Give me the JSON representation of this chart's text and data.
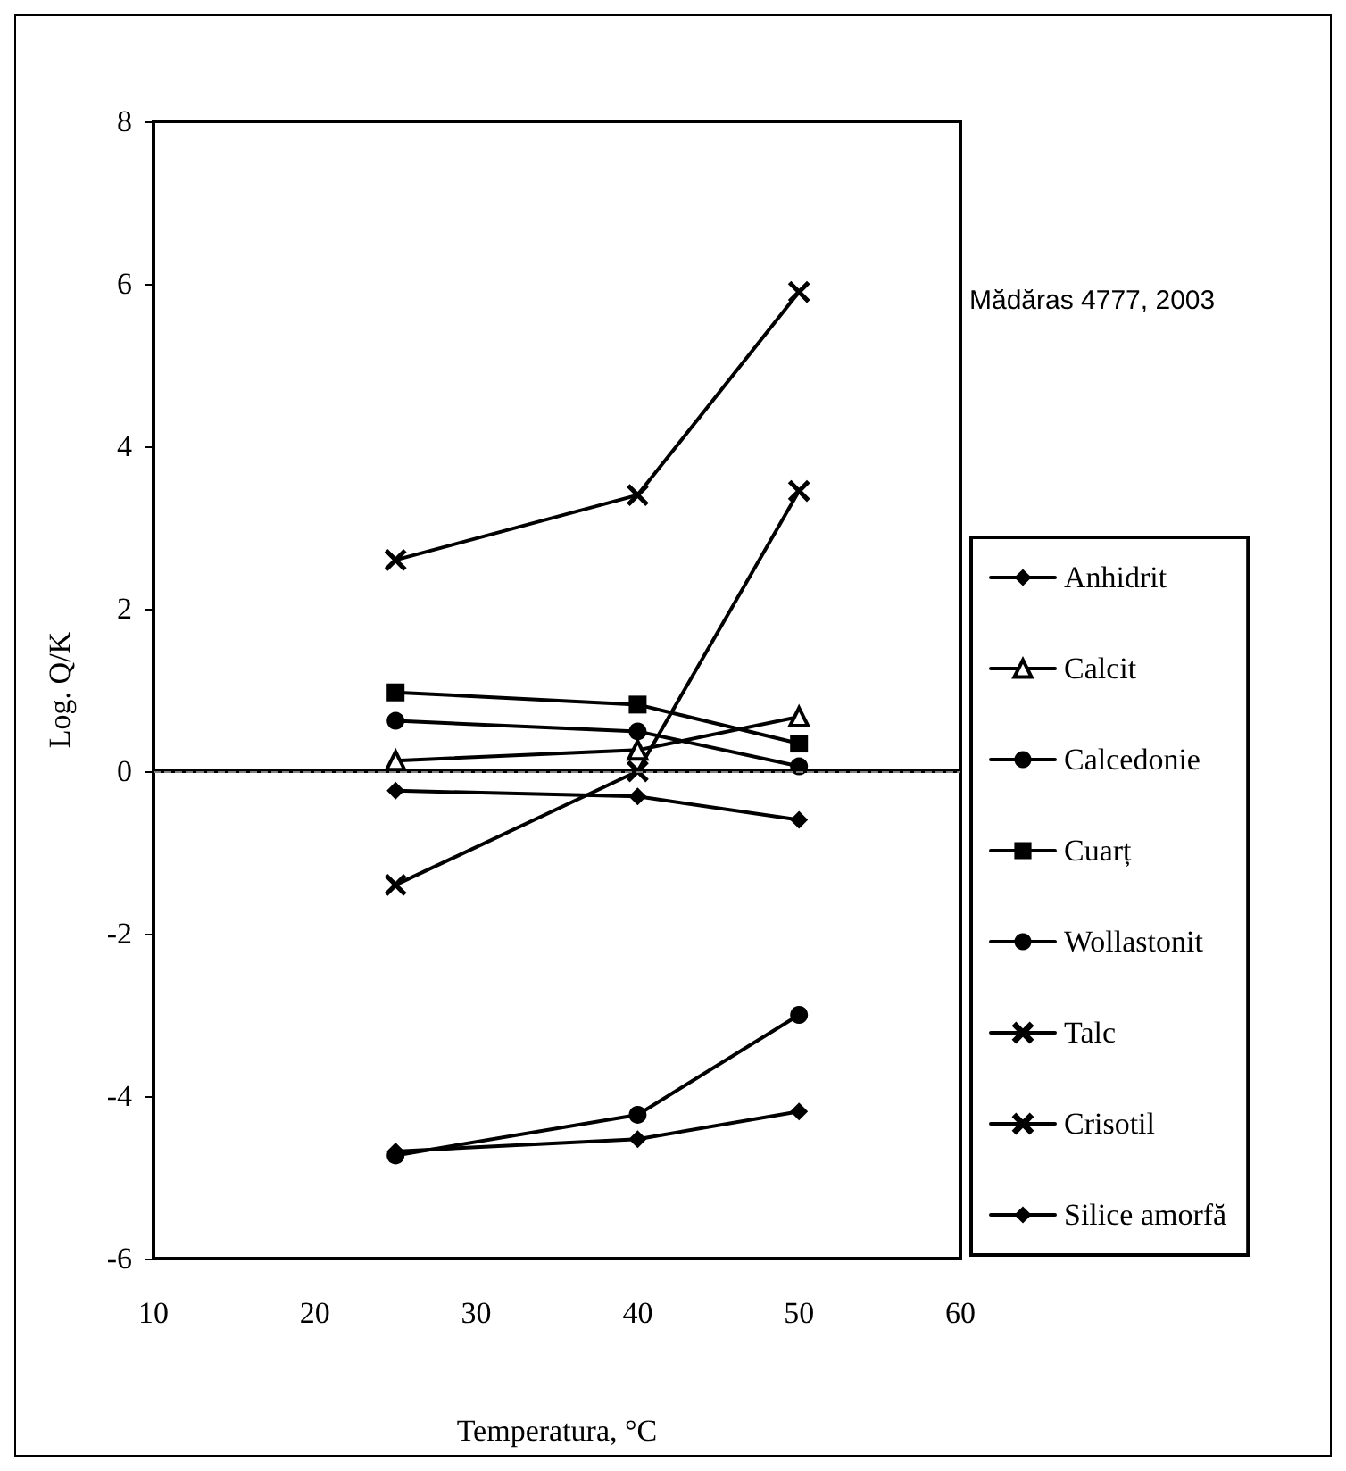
{
  "chart_data": {
    "type": "line",
    "xlabel": "Temperatura, °C",
    "ylabel": "Log. Q/K",
    "annotations": [
      "Mădăras 4777, 2003"
    ],
    "x": [
      25,
      40,
      50
    ],
    "xlim": [
      10,
      60
    ],
    "xticks": [
      10,
      20,
      30,
      40,
      50,
      60
    ],
    "ylim": [
      -6,
      8
    ],
    "yticks": [
      -6,
      -4,
      -2,
      0,
      2,
      4,
      6,
      8
    ],
    "grid": false,
    "legend": "right",
    "ref_lines": [
      {
        "axis": "y",
        "value": 0,
        "label": null,
        "color": "#808080",
        "line_style": "dashed"
      }
    ],
    "series": [
      {
        "name": "Anhidrit",
        "color": "#000000",
        "marker": "diamond",
        "values": [
          -0.24,
          -0.31,
          -0.6
        ]
      },
      {
        "name": "Calcit",
        "color": "#000000",
        "marker": "triangle",
        "values": [
          0.13,
          0.26,
          0.67
        ]
      },
      {
        "name": "Calcedonie",
        "color": "#000000",
        "marker": "circle",
        "values": [
          0.62,
          0.49,
          0.06
        ]
      },
      {
        "name": "Cuarț",
        "color": "#000000",
        "marker": "square",
        "values": [
          0.97,
          0.82,
          0.34
        ]
      },
      {
        "name": "Wollastonit",
        "color": "#000000",
        "marker": "circle",
        "values": [
          -4.73,
          -4.23,
          -3.0
        ]
      },
      {
        "name": "Talc",
        "color": "#000000",
        "marker": "cross",
        "values": [
          2.6,
          3.4,
          5.9
        ]
      },
      {
        "name": "Crisotil",
        "color": "#000000",
        "marker": "cross",
        "values": [
          -1.4,
          0.0,
          3.45
        ]
      },
      {
        "name": "Silice amorfă",
        "color": "#000000",
        "marker": "diamond",
        "values": [
          -4.68,
          -4.53,
          -4.19
        ]
      }
    ]
  }
}
